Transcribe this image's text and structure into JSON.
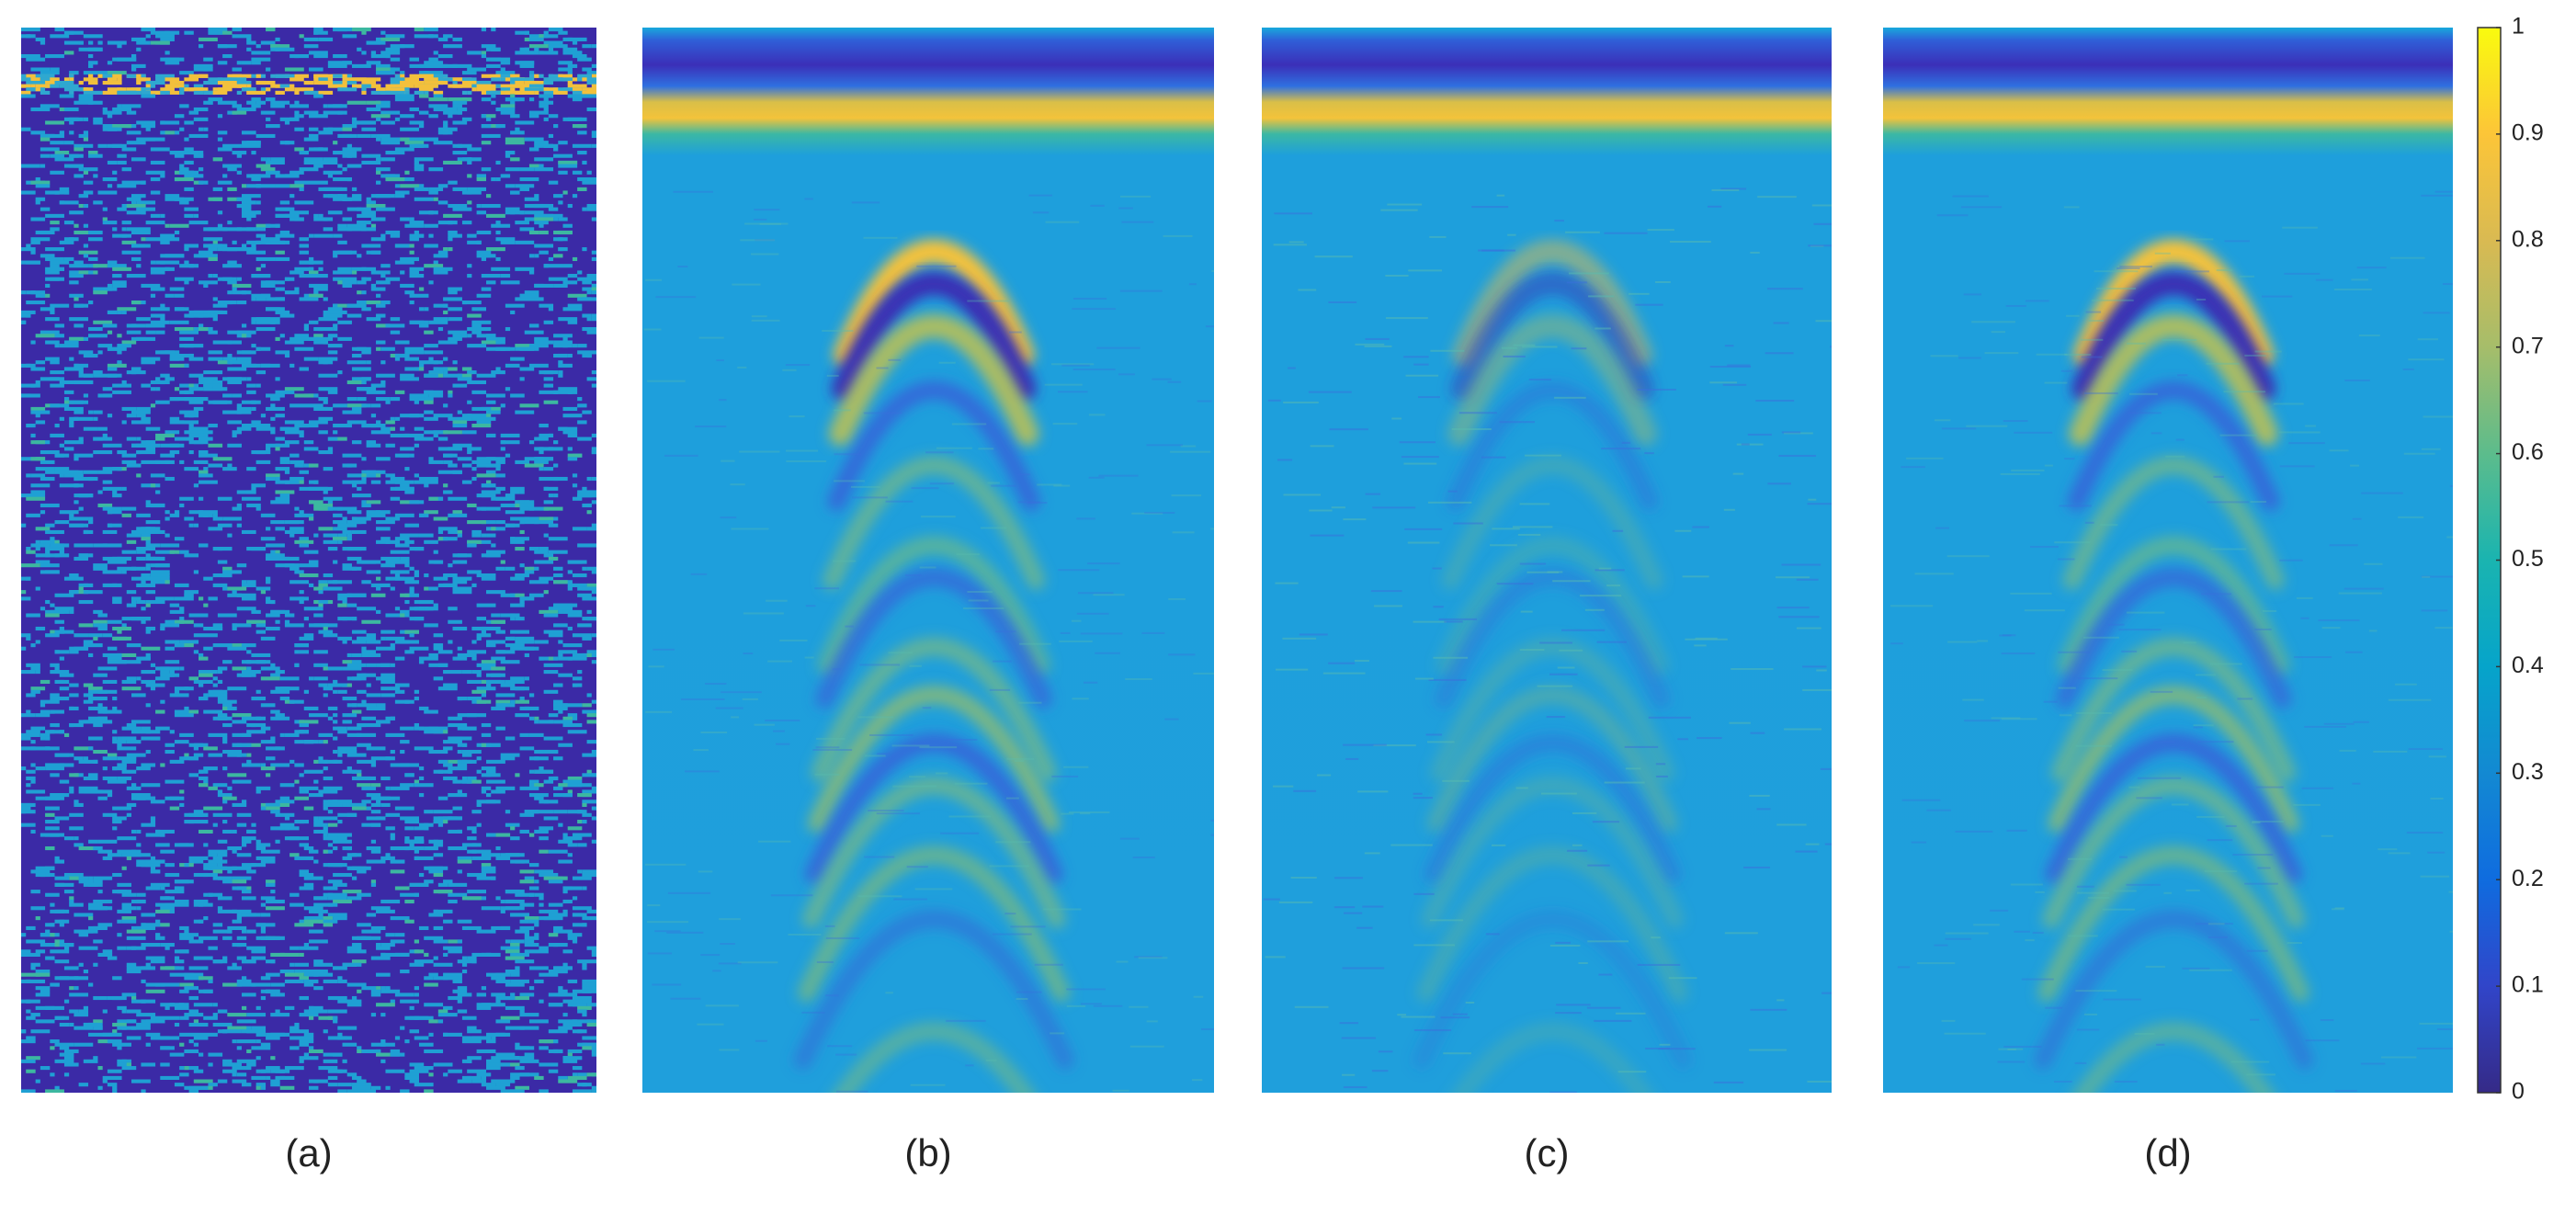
{
  "chart_data": {
    "type": "heatmap",
    "panels": [
      "(a)",
      "(b)",
      "(c)",
      "(d)"
    ],
    "clim": [
      0,
      1
    ],
    "colorbar_ticks": [
      0,
      0.1,
      0.2,
      0.3,
      0.4,
      0.5,
      0.6,
      0.7,
      0.8,
      0.9,
      1
    ],
    "colormap": [
      "#352a87",
      "#3145c9",
      "#0f6cdf",
      "#1389d2",
      "#06a4ca",
      "#1ab4b0",
      "#5cbc8c",
      "#a6bd6a",
      "#d9ba52",
      "#fcc538",
      "#f9fb0e"
    ]
  }
}
